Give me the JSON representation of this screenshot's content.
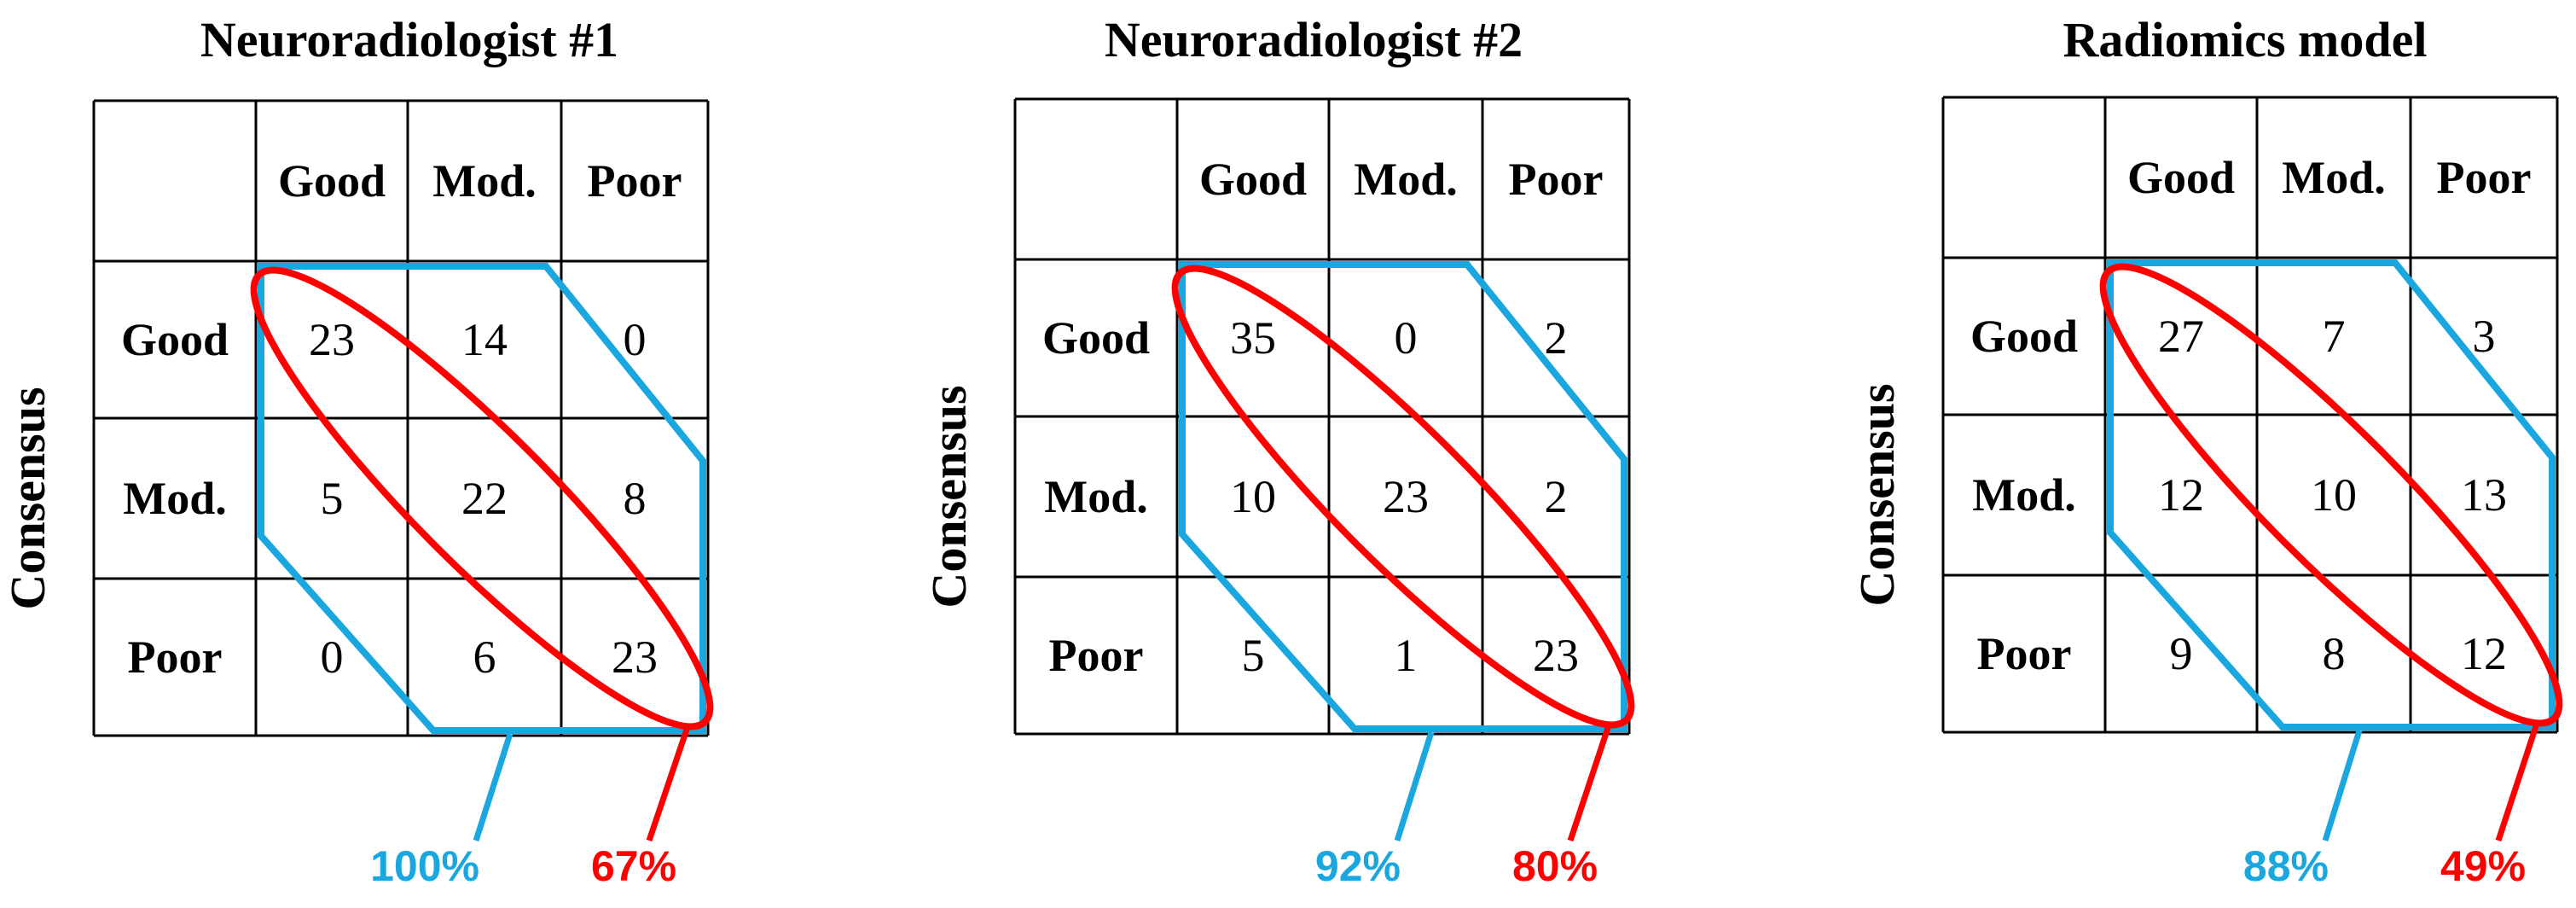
{
  "chart_data": [
    {
      "type": "table",
      "title": "Neuroradiologist #1",
      "ylabel": "Consensus",
      "columns": [
        "Good",
        "Mod.",
        "Poor"
      ],
      "rows": [
        "Good",
        "Mod.",
        "Poor"
      ],
      "values": [
        [
          23,
          14,
          0
        ],
        [
          5,
          22,
          8
        ],
        [
          0,
          6,
          23
        ]
      ],
      "annotations": [
        {
          "text": "100%",
          "color": "#1aa7e0"
        },
        {
          "text": "67%",
          "color": "#ff0000"
        }
      ]
    },
    {
      "type": "table",
      "title": "Neuroradiologist #2",
      "ylabel": "Consensus",
      "columns": [
        "Good",
        "Mod.",
        "Poor"
      ],
      "rows": [
        "Good",
        "Mod.",
        "Poor"
      ],
      "values": [
        [
          35,
          0,
          2
        ],
        [
          10,
          23,
          2
        ],
        [
          5,
          1,
          23
        ]
      ],
      "annotations": [
        {
          "text": "92%",
          "color": "#1aa7e0"
        },
        {
          "text": "80%",
          "color": "#ff0000"
        }
      ]
    },
    {
      "type": "table",
      "title": "Radiomics model",
      "ylabel": "Consensus",
      "columns": [
        "Good",
        "Mod.",
        "Poor"
      ],
      "rows": [
        "Good",
        "Mod.",
        "Poor"
      ],
      "values": [
        [
          27,
          7,
          3
        ],
        [
          12,
          10,
          13
        ],
        [
          9,
          8,
          12
        ]
      ],
      "annotations": [
        {
          "text": "88%",
          "color": "#1aa7e0"
        },
        {
          "text": "49%",
          "color": "#ff0000"
        }
      ]
    }
  ]
}
